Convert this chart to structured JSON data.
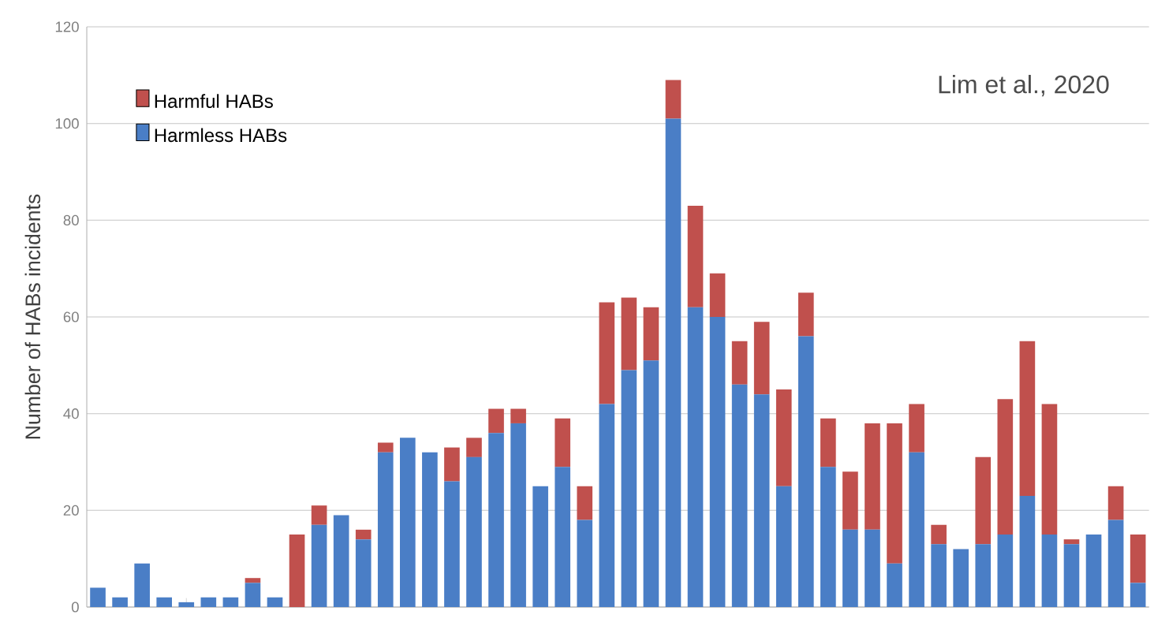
{
  "chart_data": {
    "type": "bar",
    "stacked": true,
    "ylabel": "Number of HABs incidents",
    "annotations": [
      "Lim et al., 2020"
    ],
    "categories": [
      null,
      null,
      null,
      null,
      null,
      null,
      null,
      null,
      null,
      null,
      null,
      null,
      null,
      null,
      null,
      null,
      null,
      null,
      null,
      null,
      null,
      null,
      null,
      null,
      null,
      null,
      null,
      null,
      null,
      null,
      null,
      null,
      null,
      null,
      null,
      null,
      null,
      null,
      null,
      null,
      null,
      null,
      null,
      null,
      null,
      null,
      null,
      null
    ],
    "series": [
      {
        "name": "Harmless HABs",
        "color": "#4a7ec6",
        "values": [
          4,
          2,
          9,
          2,
          1,
          2,
          2,
          5,
          2,
          0,
          17,
          19,
          14,
          32,
          35,
          32,
          26,
          31,
          36,
          38,
          25,
          29,
          18,
          42,
          49,
          51,
          101,
          62,
          60,
          46,
          44,
          25,
          56,
          29,
          16,
          16,
          9,
          32,
          13,
          12,
          13,
          15,
          23,
          15,
          13,
          15,
          18,
          5
        ]
      },
      {
        "name": "Harmful HABs",
        "color": "#c0504d",
        "values": [
          0,
          0,
          0,
          0,
          0,
          0,
          0,
          1,
          0,
          15,
          4,
          0,
          2,
          2,
          0,
          0,
          7,
          4,
          5,
          3,
          0,
          10,
          7,
          21,
          15,
          11,
          8,
          21,
          9,
          9,
          15,
          20,
          9,
          10,
          12,
          22,
          29,
          10,
          4,
          0,
          18,
          28,
          32,
          27,
          1,
          0,
          7,
          10
        ]
      }
    ],
    "ylim": [
      0,
      120
    ],
    "yticks": [
      0,
      20,
      40,
      60,
      80,
      100,
      120
    ],
    "grid": "y",
    "legend": "top left"
  }
}
